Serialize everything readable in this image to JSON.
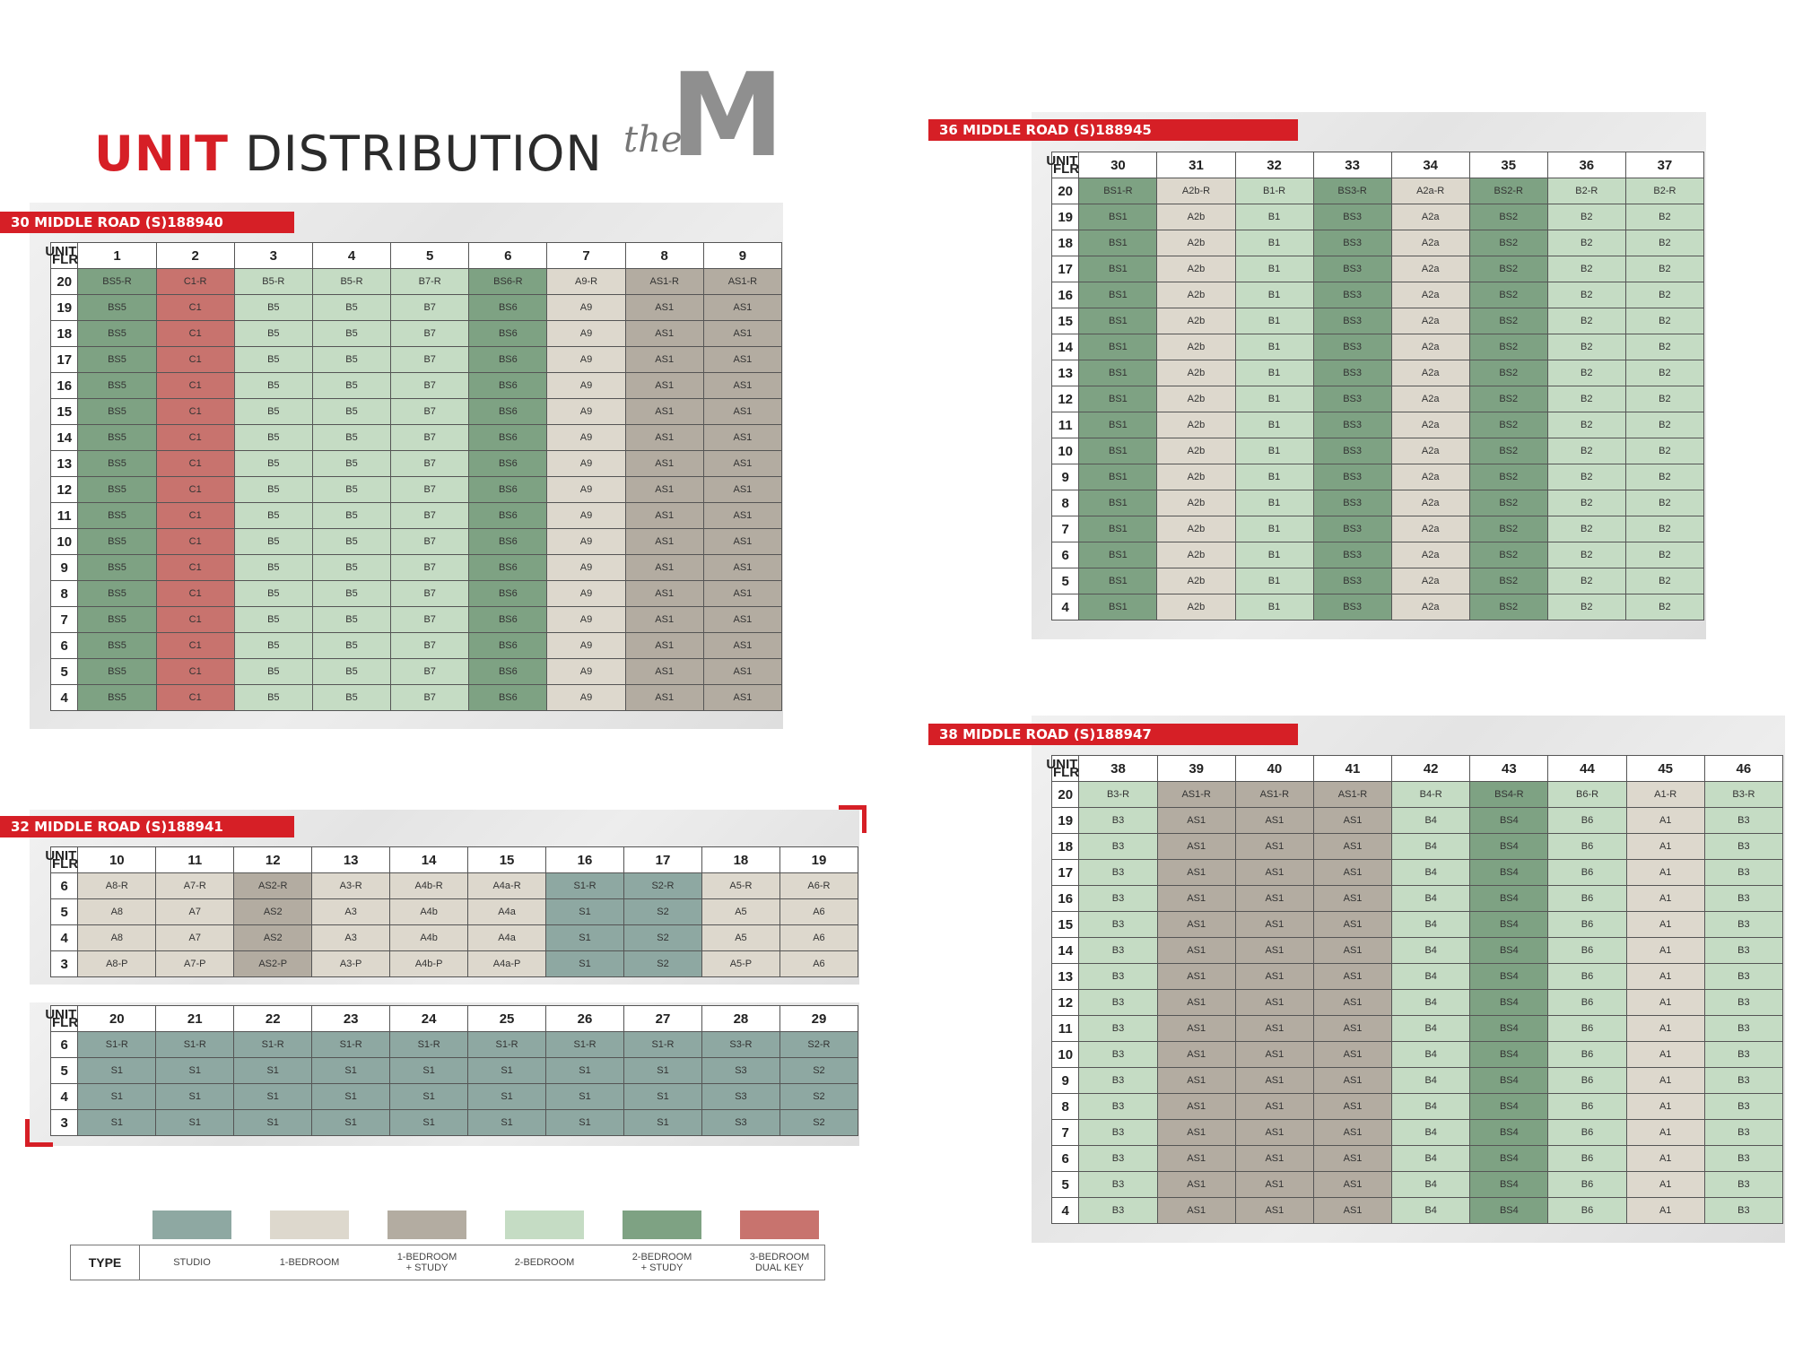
{
  "title": {
    "red": "UNIT",
    "rest": " DISTRIBUTION"
  },
  "logo": {
    "script": "the",
    "letter": "M"
  },
  "colors": {
    "studio": "#8ea8a2",
    "one_bedroom": "#ddd8cd",
    "one_bedroom_study": "#b3aca1",
    "two_bedroom": "#c5dcc4",
    "two_bedroom_study": "#7ea283",
    "three_bedroom_dual_key": "#c8736e",
    "brand_red": "#d61f26"
  },
  "blocks": [
    {
      "banner": "30 MIDDLE ROAD (S)188940",
      "corner": {
        "top": "UNIT",
        "bottom": "FLR"
      },
      "units": [
        "1",
        "2",
        "3",
        "4",
        "5",
        "6",
        "7",
        "8",
        "9"
      ],
      "col_types": [
        "two_bedroom_study",
        "three_bedroom_dual_key",
        "two_bedroom",
        "two_bedroom",
        "two_bedroom",
        "two_bedroom_study",
        "one_bedroom",
        "one_bedroom_study",
        "one_bedroom_study"
      ],
      "floors": [
        "20",
        "19",
        "18",
        "17",
        "16",
        "15",
        "14",
        "13",
        "12",
        "11",
        "10",
        "9",
        "8",
        "7",
        "6",
        "5",
        "4"
      ],
      "top_row": [
        "BS5-R",
        "C1-R",
        "B5-R",
        "B5-R",
        "B7-R",
        "BS6-R",
        "A9-R",
        "AS1-R",
        "AS1-R"
      ],
      "base_row": [
        "BS5",
        "C1",
        "B5",
        "B5",
        "B7",
        "BS6",
        "A9",
        "AS1",
        "AS1"
      ]
    },
    {
      "banner": "32 MIDDLE ROAD (S)188941",
      "corner": {
        "top": "UNIT",
        "bottom": "FLR"
      },
      "units": [
        "10",
        "11",
        "12",
        "13",
        "14",
        "15",
        "16",
        "17",
        "18",
        "19"
      ],
      "col_types": [
        "one_bedroom",
        "one_bedroom",
        "one_bedroom_study",
        "one_bedroom",
        "one_bedroom",
        "one_bedroom",
        "studio",
        "studio",
        "one_bedroom",
        "one_bedroom"
      ],
      "floors": [
        "6",
        "5",
        "4",
        "3"
      ],
      "rows": [
        [
          "A8-R",
          "A7-R",
          "AS2-R",
          "A3-R",
          "A4b-R",
          "A4a-R",
          "S1-R",
          "S2-R",
          "A5-R",
          "A6-R"
        ],
        [
          "A8",
          "A7",
          "AS2",
          "A3",
          "A4b",
          "A4a",
          "S1",
          "S2",
          "A5",
          "A6"
        ],
        [
          "A8",
          "A7",
          "AS2",
          "A3",
          "A4b",
          "A4a",
          "S1",
          "S2",
          "A5",
          "A6"
        ],
        [
          "A8-P",
          "A7-P",
          "AS2-P",
          "A3-P",
          "A4b-P",
          "A4a-P",
          "S1",
          "S2",
          "A5-P",
          "A6"
        ]
      ]
    },
    {
      "banner": "",
      "corner": {
        "top": "UNIT",
        "bottom": "FLR"
      },
      "units": [
        "20",
        "21",
        "22",
        "23",
        "24",
        "25",
        "26",
        "27",
        "28",
        "29"
      ],
      "col_types": [
        "studio",
        "studio",
        "studio",
        "studio",
        "studio",
        "studio",
        "studio",
        "studio",
        "studio",
        "studio"
      ],
      "floors": [
        "6",
        "5",
        "4",
        "3"
      ],
      "rows": [
        [
          "S1-R",
          "S1-R",
          "S1-R",
          "S1-R",
          "S1-R",
          "S1-R",
          "S1-R",
          "S1-R",
          "S3-R",
          "S2-R"
        ],
        [
          "S1",
          "S1",
          "S1",
          "S1",
          "S1",
          "S1",
          "S1",
          "S1",
          "S3",
          "S2"
        ],
        [
          "S1",
          "S1",
          "S1",
          "S1",
          "S1",
          "S1",
          "S1",
          "S1",
          "S3",
          "S2"
        ],
        [
          "S1",
          "S1",
          "S1",
          "S1",
          "S1",
          "S1",
          "S1",
          "S1",
          "S3",
          "S2"
        ]
      ]
    },
    {
      "banner": "36 MIDDLE ROAD (S)188945",
      "corner": {
        "top": "UNIT",
        "bottom": "FLR"
      },
      "units": [
        "30",
        "31",
        "32",
        "33",
        "34",
        "35",
        "36",
        "37"
      ],
      "col_types": [
        "two_bedroom_study",
        "one_bedroom",
        "two_bedroom",
        "two_bedroom_study",
        "one_bedroom",
        "two_bedroom_study",
        "two_bedroom",
        "two_bedroom"
      ],
      "floors": [
        "20",
        "19",
        "18",
        "17",
        "16",
        "15",
        "14",
        "13",
        "12",
        "11",
        "10",
        "9",
        "8",
        "7",
        "6",
        "5",
        "4"
      ],
      "top_row": [
        "BS1-R",
        "A2b-R",
        "B1-R",
        "BS3-R",
        "A2a-R",
        "BS2-R",
        "B2-R",
        "B2-R"
      ],
      "base_row": [
        "BS1",
        "A2b",
        "B1",
        "BS3",
        "A2a",
        "BS2",
        "B2",
        "B2"
      ]
    },
    {
      "banner": "38 MIDDLE ROAD (S)188947",
      "corner": {
        "top": "UNIT",
        "bottom": "FLR"
      },
      "units": [
        "38",
        "39",
        "40",
        "41",
        "42",
        "43",
        "44",
        "45",
        "46"
      ],
      "col_types": [
        "two_bedroom",
        "one_bedroom_study",
        "one_bedroom_study",
        "one_bedroom_study",
        "two_bedroom",
        "two_bedroom_study",
        "two_bedroom",
        "one_bedroom",
        "two_bedroom"
      ],
      "floors": [
        "20",
        "19",
        "18",
        "17",
        "16",
        "15",
        "14",
        "13",
        "12",
        "11",
        "10",
        "9",
        "8",
        "7",
        "6",
        "5",
        "4"
      ],
      "top_row": [
        "B3-R",
        "AS1-R",
        "AS1-R",
        "AS1-R",
        "B4-R",
        "BS4-R",
        "B6-R",
        "A1-R",
        "B3-R"
      ],
      "base_row": [
        "B3",
        "AS1",
        "AS1",
        "AS1",
        "B4",
        "BS4",
        "B6",
        "A1",
        "B3"
      ]
    }
  ],
  "legend": {
    "type_label": "TYPE",
    "items": [
      {
        "key": "studio",
        "label": "STUDIO"
      },
      {
        "key": "one_bedroom",
        "label": "1-BEDROOM"
      },
      {
        "key": "one_bedroom_study",
        "label": "1-BEDROOM\n+ STUDY"
      },
      {
        "key": "two_bedroom",
        "label": "2-BEDROOM"
      },
      {
        "key": "two_bedroom_study",
        "label": "2-BEDROOM\n+ STUDY"
      },
      {
        "key": "three_bedroom_dual_key",
        "label": "3-BEDROOM\nDUAL KEY"
      }
    ]
  }
}
